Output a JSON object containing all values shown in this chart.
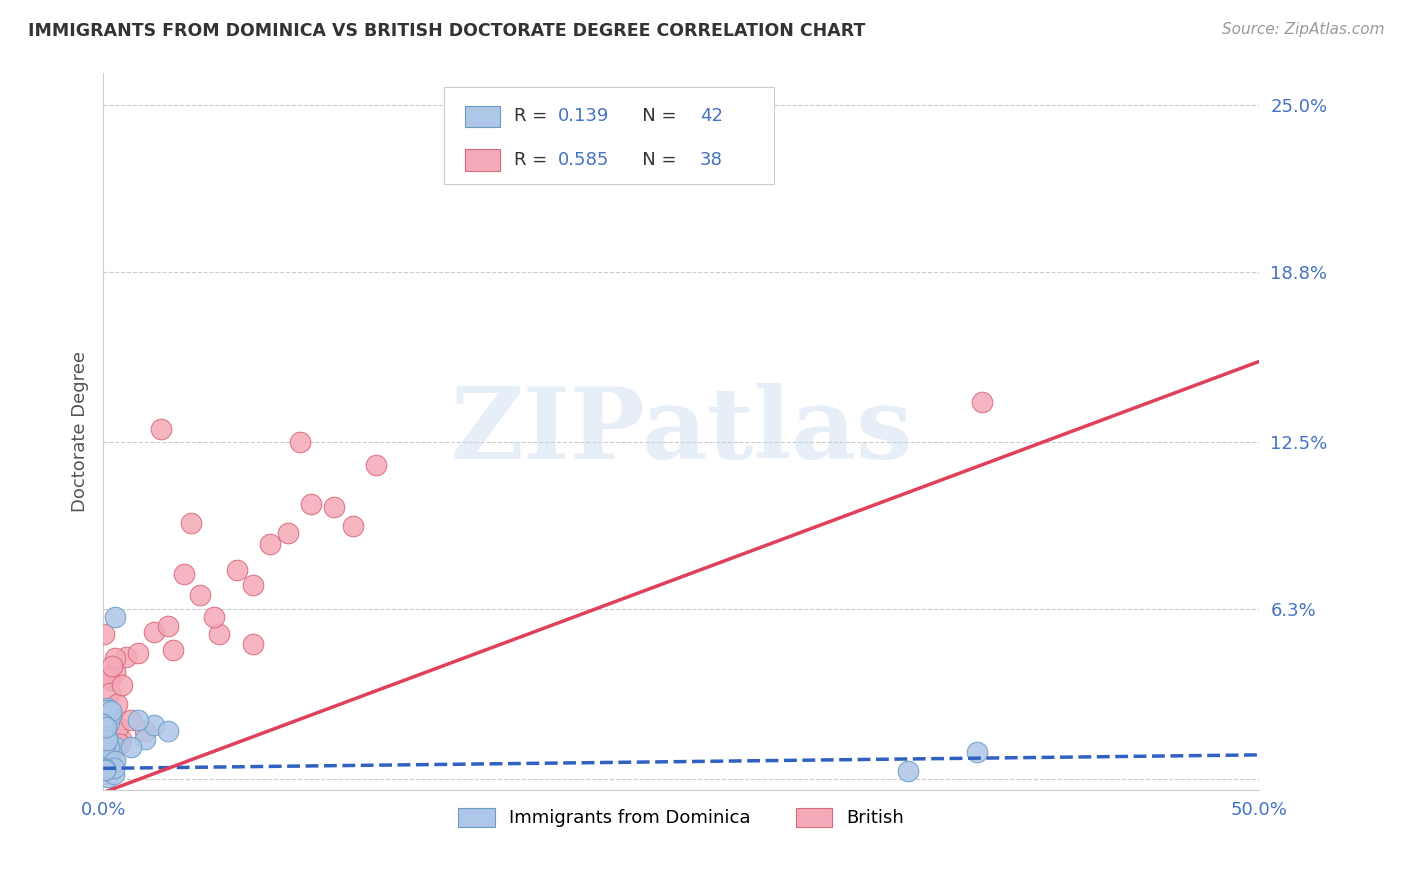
{
  "title": "IMMIGRANTS FROM DOMINICA VS BRITISH DOCTORATE DEGREE CORRELATION CHART",
  "source_text": "Source: ZipAtlas.com",
  "ylabel": "Doctorate Degree",
  "x_min": 0.0,
  "x_max": 0.5,
  "y_min": -0.004,
  "y_max": 0.262,
  "y_ticks": [
    0.0,
    0.063,
    0.125,
    0.188,
    0.25
  ],
  "y_tick_labels": [
    "",
    "6.3%",
    "12.5%",
    "18.8%",
    "25.0%"
  ],
  "x_ticks": [
    0.0,
    0.1,
    0.2,
    0.3,
    0.4,
    0.5
  ],
  "x_tick_labels": [
    "0.0%",
    "",
    "",
    "",
    "",
    "50.0%"
  ],
  "dominica_color": "#aec6e8",
  "dominica_edge_color": "#6b9dc2",
  "british_color": "#f4aab8",
  "british_edge_color": "#d9687a",
  "dominica_line_color": "#3060c0",
  "british_line_color": "#e0405a",
  "dom_line_intercept": 0.004,
  "dom_line_slope": 0.01,
  "brit_line_intercept": -0.005,
  "brit_line_slope": 0.32,
  "R_dominica": "0.139",
  "N_dominica": "42",
  "R_british": "0.585",
  "N_british": "38",
  "legend_label_dominica": "Immigrants from Dominica",
  "legend_label_british": "British",
  "watermark": "ZIPatlas",
  "watermark_zip_color": "#c8dff0",
  "watermark_atlas_color": "#d0c8e8",
  "background_color": "#ffffff",
  "grid_color": "#cccccc",
  "tick_color": "#4472c4",
  "label_color": "#555555",
  "title_color": "#333333",
  "source_color": "#999999",
  "legend_text_color": "#333333",
  "legend_value_color": "#4472c4"
}
